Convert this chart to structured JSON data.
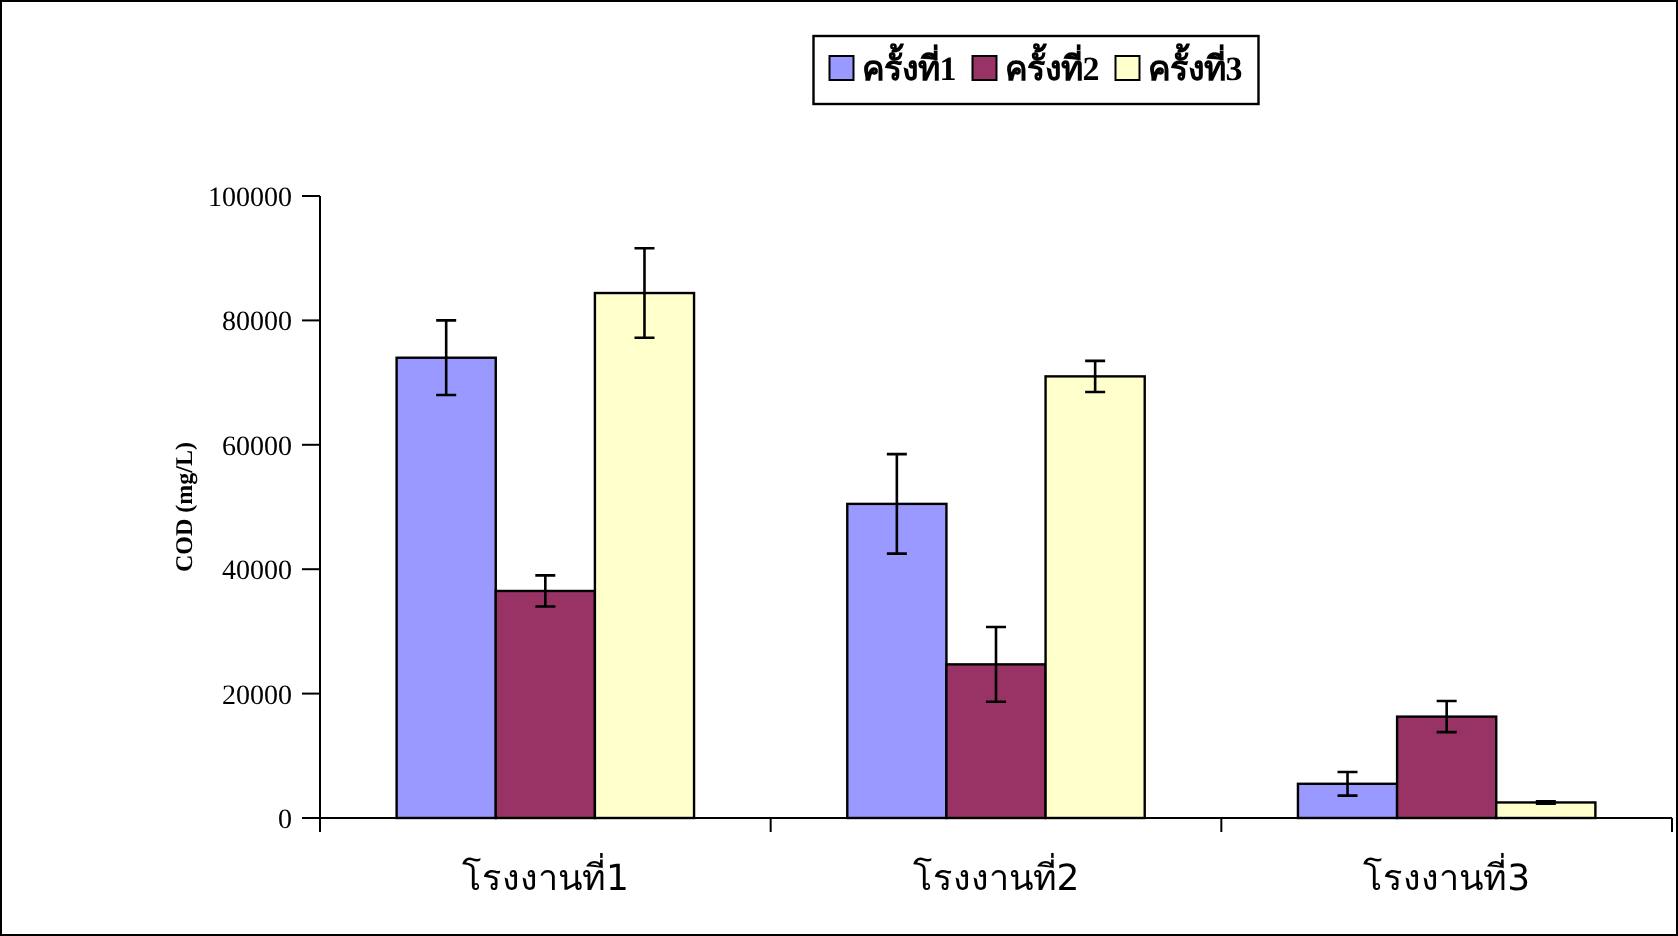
{
  "chart_data": {
    "type": "bar",
    "ylabel": "COD (mg/L)",
    "categories": [
      "โรงงานที่1",
      "โรงงานที่2",
      "โรงงานที่3"
    ],
    "series": [
      {
        "name": "ครั้งที่1",
        "color": "#9999ff",
        "values": [
          74000,
          50500,
          5500
        ],
        "errors": [
          6000,
          8000,
          1900
        ]
      },
      {
        "name": "ครั้งที่2",
        "color": "#993366",
        "values": [
          36500,
          24700,
          16300
        ],
        "errors": [
          2500,
          6000,
          2500
        ]
      },
      {
        "name": "ครั้งที่3",
        "color": "#ffffcc",
        "values": [
          84400,
          71000,
          2500
        ],
        "errors": [
          7200,
          2500,
          200
        ]
      }
    ],
    "ylim": [
      0,
      100000
    ],
    "yticks": [
      0,
      20000,
      40000,
      60000,
      80000,
      100000
    ],
    "legend": "top"
  }
}
